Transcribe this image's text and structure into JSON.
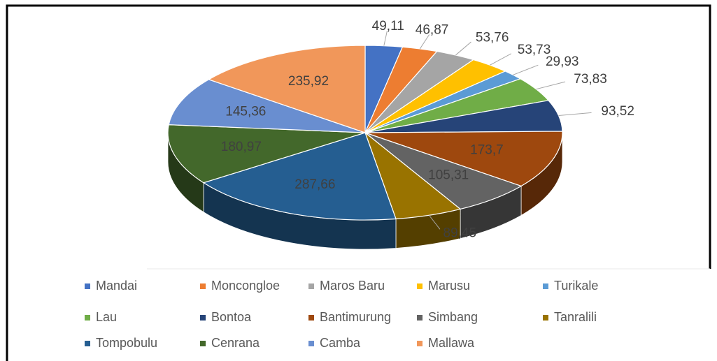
{
  "chart_data": {
    "type": "pie",
    "categories": [
      "Mandai",
      "Moncongloe",
      "Maros Baru",
      "Marusu",
      "Turikale",
      "Lau",
      "Bontoa",
      "Bantimurung",
      "Simbang",
      "Tanralili",
      "Tompobulu",
      "Cenrana",
      "Camba",
      "Mallawa"
    ],
    "values": [
      49.11,
      46.87,
      53.76,
      53.73,
      29.93,
      73.83,
      93.52,
      173.7,
      105.31,
      89.45,
      287.66,
      180.97,
      145.36,
      235.92
    ],
    "value_labels": [
      "49,11",
      "46,87",
      "53,76",
      "53,73",
      "29,93",
      "73,83",
      "93,52",
      "173,7",
      "105,31",
      "89,45",
      "287,66",
      "180,97",
      "145,36",
      "235,92"
    ],
    "colors": [
      "#4472c4",
      "#ed7d31",
      "#a5a5a5",
      "#ffc000",
      "#5b9bd5",
      "#70ad47",
      "#264478",
      "#9e480e",
      "#636363",
      "#997300",
      "#255e91",
      "#43682b",
      "#698ed0",
      "#f1975a"
    ],
    "legend": "bottom"
  }
}
